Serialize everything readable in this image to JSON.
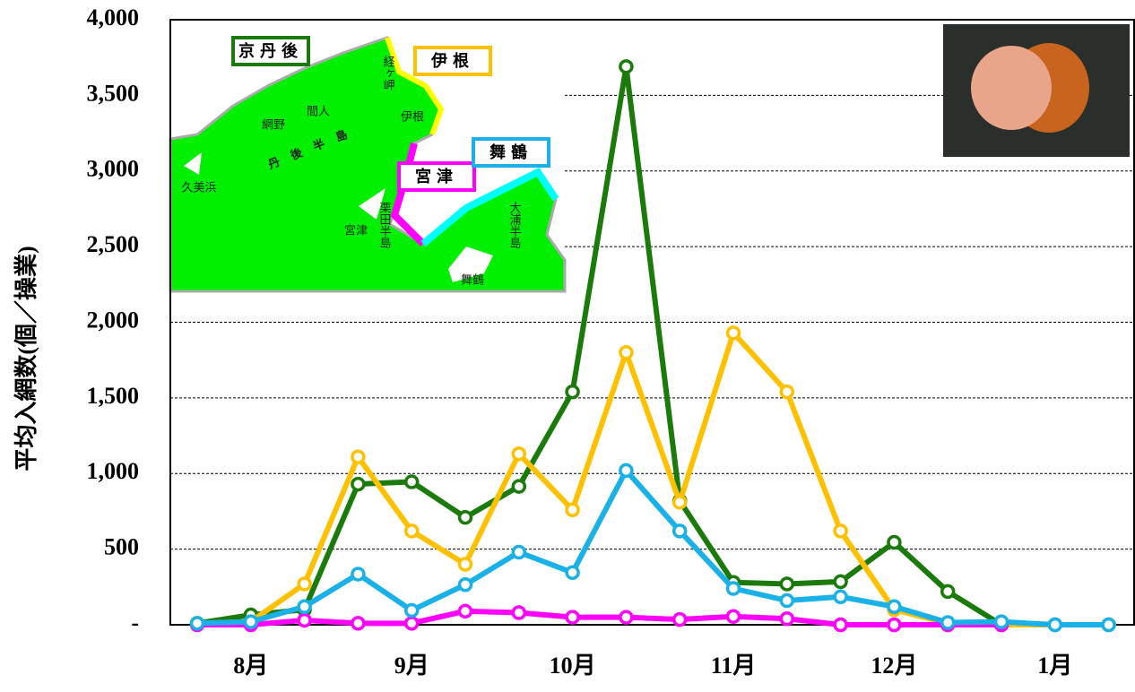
{
  "chart_data": {
    "type": "line",
    "y_label": "平均入網数(個／操業)",
    "categories": [
      null,
      "8月",
      null,
      null,
      "9月",
      null,
      null,
      "10月",
      null,
      null,
      "11月",
      null,
      null,
      "12月",
      null,
      null,
      "1月",
      null
    ],
    "series": [
      {
        "name": "京丹後",
        "color": "#1a7a0a",
        "values": [
          10,
          65,
          100,
          930,
          945,
          710,
          915,
          1540,
          3690,
          820,
          280,
          270,
          285,
          545,
          220,
          0,
          0,
          0
        ]
      },
      {
        "name": "伊根",
        "color": "#ffc000",
        "values": [
          10,
          20,
          270,
          1110,
          620,
          400,
          1130,
          760,
          1800,
          810,
          1930,
          1540,
          620,
          100,
          10,
          0,
          0,
          0
        ]
      },
      {
        "name": "宮津",
        "color": "#ff00ff",
        "values": [
          0,
          0,
          30,
          10,
          10,
          90,
          80,
          50,
          50,
          35,
          55,
          40,
          0,
          0,
          0,
          0,
          null,
          null
        ]
      },
      {
        "name": "舞鶴",
        "color": "#1ab0e8",
        "values": [
          10,
          20,
          120,
          335,
          95,
          265,
          480,
          345,
          1020,
          620,
          240,
          160,
          185,
          120,
          15,
          20,
          0,
          0
        ]
      }
    ],
    "ylim": [
      0,
      4000
    ],
    "yticks": [
      {
        "value": 0,
        "label": "-"
      },
      500,
      {
        "value": 1000,
        "label": "1,000"
      },
      {
        "value": 1500,
        "label": "1,500"
      },
      {
        "value": 2000,
        "label": "2,000"
      },
      {
        "value": 2500,
        "label": "2,500"
      },
      {
        "value": 3000,
        "label": "3,000"
      },
      {
        "value": 3500,
        "label": "3,500"
      },
      {
        "value": 4000,
        "label": "4,000"
      }
    ],
    "grid": true,
    "annotations": [
      "丹後半島",
      "経ヶ岬",
      "間人",
      "網野",
      "久美浜",
      "伊根",
      "栗田半島",
      "宮津",
      "大浦半島",
      "舞鶴"
    ]
  }
}
